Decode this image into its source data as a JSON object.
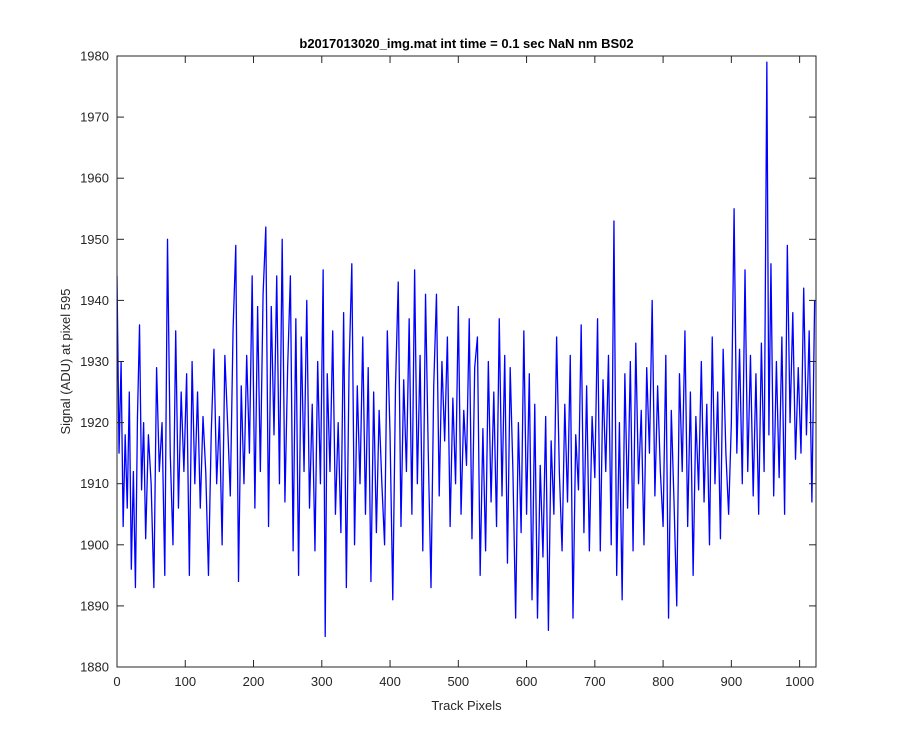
{
  "chart_data": {
    "type": "line",
    "title": "b2017013020_img.mat int time = 0.1 sec  NaN nm BS02",
    "xlabel": "Track Pixels",
    "ylabel": "Signal (ADU) at pixel 595",
    "xlim": [
      0,
      1024
    ],
    "ylim": [
      1880,
      1980
    ],
    "xticks": [
      0,
      100,
      200,
      300,
      400,
      500,
      600,
      700,
      800,
      900,
      1000
    ],
    "yticks": [
      1880,
      1890,
      1900,
      1910,
      1920,
      1930,
      1940,
      1950,
      1960,
      1970,
      1980
    ],
    "grid": false,
    "line_color": "#0000ff",
    "series": [
      {
        "name": "",
        "note_on_values": "approximate extrema read from the plot; trace is noise around ~1918 ADU",
        "points": [
          [
            0,
            1944
          ],
          [
            3,
            1915
          ],
          [
            6,
            1930
          ],
          [
            9,
            1903
          ],
          [
            12,
            1918
          ],
          [
            15,
            1906
          ],
          [
            18,
            1925
          ],
          [
            21,
            1896
          ],
          [
            24,
            1912
          ],
          [
            27,
            1893
          ],
          [
            30,
            1921
          ],
          [
            33,
            1936
          ],
          [
            36,
            1909
          ],
          [
            39,
            1920
          ],
          [
            42,
            1901
          ],
          [
            46,
            1918
          ],
          [
            50,
            1910
          ],
          [
            54,
            1893
          ],
          [
            58,
            1929
          ],
          [
            62,
            1912
          ],
          [
            66,
            1920
          ],
          [
            70,
            1895
          ],
          [
            74,
            1950
          ],
          [
            78,
            1915
          ],
          [
            82,
            1900
          ],
          [
            86,
            1935
          ],
          [
            90,
            1906
          ],
          [
            94,
            1925
          ],
          [
            98,
            1912
          ],
          [
            102,
            1928
          ],
          [
            106,
            1895
          ],
          [
            110,
            1930
          ],
          [
            114,
            1910
          ],
          [
            118,
            1925
          ],
          [
            122,
            1906
          ],
          [
            126,
            1921
          ],
          [
            130,
            1912
          ],
          [
            134,
            1895
          ],
          [
            138,
            1918
          ],
          [
            142,
            1932
          ],
          [
            146,
            1910
          ],
          [
            150,
            1921
          ],
          [
            154,
            1900
          ],
          [
            158,
            1931
          ],
          [
            162,
            1920
          ],
          [
            166,
            1908
          ],
          [
            170,
            1935
          ],
          [
            174,
            1949
          ],
          [
            178,
            1894
          ],
          [
            182,
            1926
          ],
          [
            186,
            1910
          ],
          [
            190,
            1931
          ],
          [
            194,
            1915
          ],
          [
            198,
            1944
          ],
          [
            202,
            1906
          ],
          [
            206,
            1939
          ],
          [
            210,
            1912
          ],
          [
            214,
            1941
          ],
          [
            218,
            1952
          ],
          [
            222,
            1903
          ],
          [
            226,
            1939
          ],
          [
            230,
            1918
          ],
          [
            234,
            1944
          ],
          [
            238,
            1910
          ],
          [
            242,
            1950
          ],
          [
            246,
            1907
          ],
          [
            250,
            1929
          ],
          [
            254,
            1944
          ],
          [
            258,
            1899
          ],
          [
            262,
            1937
          ],
          [
            266,
            1895
          ],
          [
            270,
            1934
          ],
          [
            274,
            1912
          ],
          [
            278,
            1940
          ],
          [
            282,
            1906
          ],
          [
            286,
            1923
          ],
          [
            290,
            1899
          ],
          [
            294,
            1930
          ],
          [
            298,
            1910
          ],
          [
            302,
            1945
          ],
          [
            305,
            1885
          ],
          [
            308,
            1928
          ],
          [
            312,
            1912
          ],
          [
            316,
            1935
          ],
          [
            320,
            1905
          ],
          [
            324,
            1920
          ],
          [
            328,
            1902
          ],
          [
            332,
            1938
          ],
          [
            336,
            1893
          ],
          [
            340,
            1929
          ],
          [
            344,
            1946
          ],
          [
            348,
            1900
          ],
          [
            352,
            1926
          ],
          [
            356,
            1910
          ],
          [
            360,
            1934
          ],
          [
            364,
            1905
          ],
          [
            368,
            1929
          ],
          [
            372,
            1894
          ],
          [
            376,
            1925
          ],
          [
            380,
            1902
          ],
          [
            384,
            1922
          ],
          [
            388,
            1910
          ],
          [
            392,
            1900
          ],
          [
            396,
            1935
          ],
          [
            400,
            1918
          ],
          [
            404,
            1891
          ],
          [
            408,
            1926
          ],
          [
            412,
            1943
          ],
          [
            416,
            1903
          ],
          [
            420,
            1927
          ],
          [
            424,
            1912
          ],
          [
            428,
            1937
          ],
          [
            432,
            1905
          ],
          [
            436,
            1945
          ],
          [
            440,
            1910
          ],
          [
            444,
            1931
          ],
          [
            448,
            1899
          ],
          [
            452,
            1941
          ],
          [
            456,
            1915
          ],
          [
            460,
            1893
          ],
          [
            464,
            1926
          ],
          [
            468,
            1941
          ],
          [
            472,
            1908
          ],
          [
            476,
            1930
          ],
          [
            480,
            1917
          ],
          [
            484,
            1934
          ],
          [
            488,
            1903
          ],
          [
            492,
            1924
          ],
          [
            496,
            1910
          ],
          [
            500,
            1939
          ],
          [
            504,
            1905
          ],
          [
            508,
            1922
          ],
          [
            512,
            1913
          ],
          [
            516,
            1937
          ],
          [
            520,
            1901
          ],
          [
            524,
            1929
          ],
          [
            528,
            1934
          ],
          [
            532,
            1895
          ],
          [
            536,
            1919
          ],
          [
            540,
            1899
          ],
          [
            544,
            1930
          ],
          [
            548,
            1907
          ],
          [
            552,
            1925
          ],
          [
            556,
            1903
          ],
          [
            560,
            1937
          ],
          [
            564,
            1908
          ],
          [
            568,
            1931
          ],
          [
            572,
            1897
          ],
          [
            576,
            1929
          ],
          [
            580,
            1912
          ],
          [
            584,
            1888
          ],
          [
            588,
            1920
          ],
          [
            592,
            1902
          ],
          [
            596,
            1935
          ],
          [
            600,
            1905
          ],
          [
            604,
            1928
          ],
          [
            608,
            1891
          ],
          [
            612,
            1923
          ],
          [
            616,
            1888
          ],
          [
            620,
            1913
          ],
          [
            624,
            1898
          ],
          [
            628,
            1921
          ],
          [
            632,
            1886
          ],
          [
            636,
            1917
          ],
          [
            640,
            1905
          ],
          [
            644,
            1934
          ],
          [
            648,
            1912
          ],
          [
            652,
            1899
          ],
          [
            656,
            1923
          ],
          [
            660,
            1907
          ],
          [
            664,
            1931
          ],
          [
            668,
            1888
          ],
          [
            672,
            1918
          ],
          [
            676,
            1909
          ],
          [
            680,
            1936
          ],
          [
            684,
            1902
          ],
          [
            688,
            1926
          ],
          [
            692,
            1899
          ],
          [
            696,
            1921
          ],
          [
            700,
            1911
          ],
          [
            704,
            1937
          ],
          [
            708,
            1899
          ],
          [
            712,
            1927
          ],
          [
            716,
            1912
          ],
          [
            720,
            1931
          ],
          [
            724,
            1900
          ],
          [
            728,
            1953
          ],
          [
            732,
            1895
          ],
          [
            736,
            1920
          ],
          [
            740,
            1891
          ],
          [
            744,
            1928
          ],
          [
            748,
            1906
          ],
          [
            752,
            1930
          ],
          [
            756,
            1899
          ],
          [
            760,
            1933
          ],
          [
            764,
            1910
          ],
          [
            768,
            1922
          ],
          [
            772,
            1900
          ],
          [
            776,
            1929
          ],
          [
            780,
            1915
          ],
          [
            784,
            1940
          ],
          [
            788,
            1908
          ],
          [
            792,
            1926
          ],
          [
            796,
            1912
          ],
          [
            800,
            1903
          ],
          [
            804,
            1931
          ],
          [
            808,
            1888
          ],
          [
            812,
            1922
          ],
          [
            816,
            1907
          ],
          [
            820,
            1890
          ],
          [
            824,
            1928
          ],
          [
            828,
            1912
          ],
          [
            832,
            1935
          ],
          [
            836,
            1903
          ],
          [
            840,
            1925
          ],
          [
            844,
            1895
          ],
          [
            848,
            1921
          ],
          [
            852,
            1909
          ],
          [
            856,
            1930
          ],
          [
            860,
            1907
          ],
          [
            864,
            1923
          ],
          [
            868,
            1900
          ],
          [
            872,
            1934
          ],
          [
            876,
            1910
          ],
          [
            880,
            1925
          ],
          [
            884,
            1901
          ],
          [
            888,
            1932
          ],
          [
            892,
            1915
          ],
          [
            896,
            1905
          ],
          [
            900,
            1920
          ],
          [
            904,
            1955
          ],
          [
            908,
            1915
          ],
          [
            912,
            1932
          ],
          [
            916,
            1910
          ],
          [
            920,
            1945
          ],
          [
            924,
            1912
          ],
          [
            928,
            1931
          ],
          [
            932,
            1908
          ],
          [
            936,
            1928
          ],
          [
            940,
            1905
          ],
          [
            944,
            1933
          ],
          [
            948,
            1912
          ],
          [
            952,
            1979
          ],
          [
            955,
            1918
          ],
          [
            958,
            1946
          ],
          [
            962,
            1908
          ],
          [
            966,
            1930
          ],
          [
            970,
            1911
          ],
          [
            974,
            1934
          ],
          [
            978,
            1905
          ],
          [
            982,
            1949
          ],
          [
            986,
            1920
          ],
          [
            990,
            1938
          ],
          [
            994,
            1914
          ],
          [
            998,
            1929
          ],
          [
            1002,
            1915
          ],
          [
            1006,
            1942
          ],
          [
            1010,
            1918
          ],
          [
            1014,
            1935
          ],
          [
            1018,
            1907
          ],
          [
            1022,
            1940
          ]
        ]
      }
    ]
  }
}
